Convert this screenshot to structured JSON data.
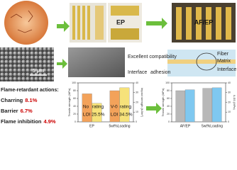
{
  "labels": {
    "ep": "EP",
    "af_ep": "AF/EP",
    "scale_bar": "5 μm",
    "compatibility": "Excellent compatibility",
    "interface": "Interface",
    "adhesion": "adhesion",
    "fiber": "Fiber",
    "matrix": "Matrix",
    "interface_2": "Interface"
  },
  "flame_retardant": {
    "title": "Flame-retardant actions:",
    "items": [
      {
        "name": "Charring",
        "value": "8.1%"
      },
      {
        "name": "Barrier",
        "value": "6.7%"
      },
      {
        "name": "Flame inhibition",
        "value": "4.9%"
      }
    ]
  },
  "chart_data": [
    {
      "type": "bar",
      "categories": [
        "EP",
        "5wt%Loading"
      ],
      "y_label": "Tensile strength (MPa)",
      "y2_label": "Impact strength (kJ/m²)",
      "ylim": [
        0,
        100
      ],
      "yticks": [
        0,
        20,
        40,
        60,
        80,
        100
      ],
      "y2lim": [
        0,
        40
      ],
      "y2ticks": [
        0,
        10,
        20,
        30,
        40
      ],
      "series": [
        {
          "color": "#f3a25a",
          "values": [
            72,
            80
          ]
        },
        {
          "color": "#f6e27a",
          "values": [
            19,
            35
          ],
          "axis": "y2"
        }
      ],
      "annotations": [
        [
          "No",
          "rating",
          "LOI 25.5%"
        ],
        [
          "V-0",
          "rating",
          "LOI 34.5%"
        ]
      ]
    },
    {
      "type": "bar",
      "categories": [
        "AF/EP",
        "5wt%Loading"
      ],
      "y_label": "Tensile strength (MPa)",
      "y2_label": "ILSS (MPa)",
      "ylim": [
        0,
        100
      ],
      "yticks": [
        0,
        20,
        40,
        60,
        80,
        100
      ],
      "y2lim": [
        0,
        40
      ],
      "y2ticks": [
        0,
        10,
        20,
        30,
        40
      ],
      "series": [
        {
          "color": "#b8b8b8",
          "values": [
            80,
            86
          ]
        },
        {
          "color": "#7fc8f0",
          "values": [
            33,
            35
          ],
          "axis": "y2"
        }
      ]
    }
  ]
}
